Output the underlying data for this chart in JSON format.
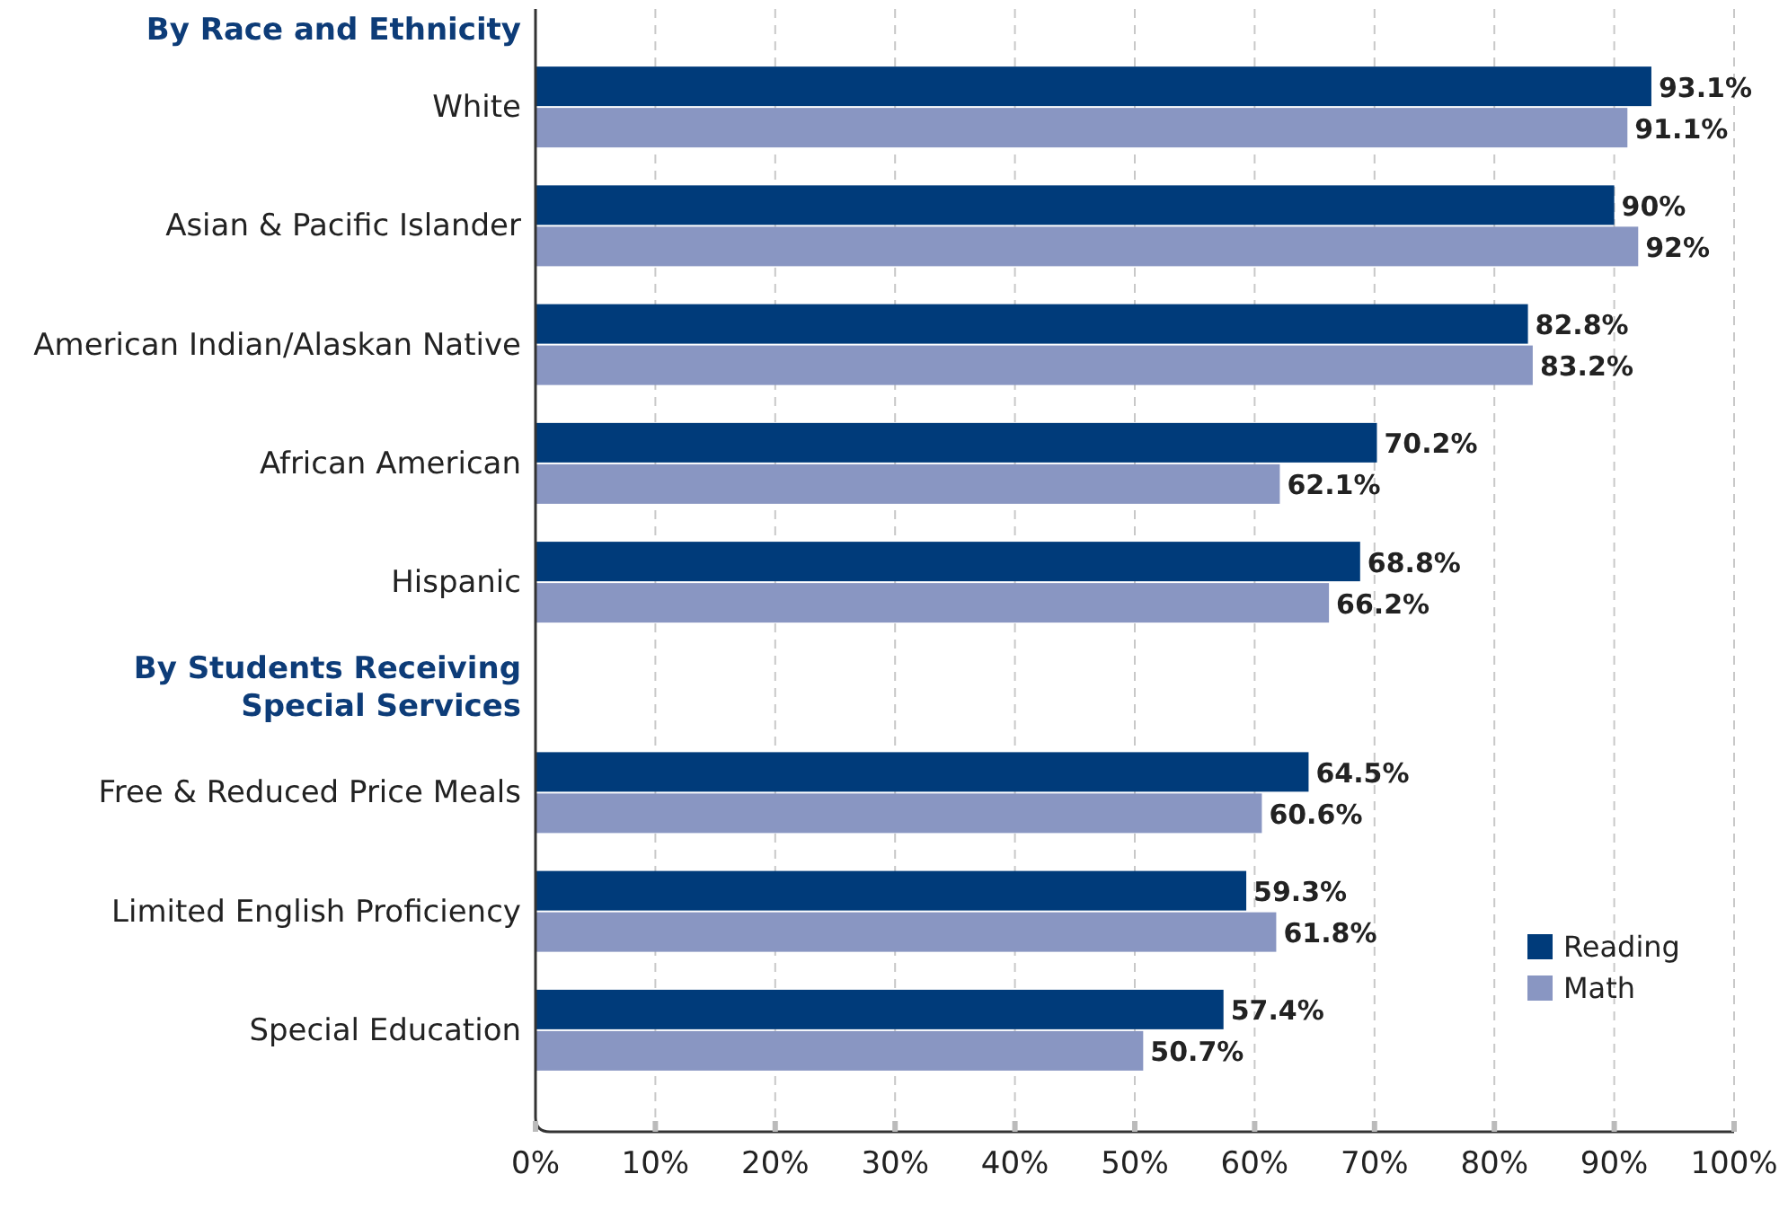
{
  "chart_data": {
    "type": "bar",
    "orientation": "horizontal",
    "categories": [
      "White",
      "Asian & Pacific Islander",
      "American Indian/Alaskan Native",
      "African American",
      "Hispanic",
      null,
      "Free & Reduced Price Meals",
      "Limited English Proficiency",
      "Special Education"
    ],
    "series": [
      {
        "name": "Reading",
        "color": "#003b7a",
        "values": [
          93.1,
          90,
          82.8,
          70.2,
          68.8,
          null,
          64.5,
          59.3,
          57.4
        ],
        "value_labels": [
          "93.1%",
          "90%",
          "82.8%",
          "70.2%",
          "68.8%",
          null,
          "64.5%",
          "59.3%",
          "57.4%"
        ]
      },
      {
        "name": "Math",
        "color": "#8996c2",
        "values": [
          91.1,
          92,
          83.2,
          62.1,
          66.2,
          null,
          60.6,
          61.8,
          50.7
        ],
        "value_labels": [
          "91.1%",
          "92%",
          "83.2%",
          "62.1%",
          "66.2%",
          null,
          "60.6%",
          "61.8%",
          "50.7%"
        ]
      }
    ],
    "xlim": [
      0,
      100
    ],
    "xticks": [
      {
        "value": 0,
        "label": "0%"
      },
      {
        "value": 10,
        "label": "10%"
      },
      {
        "value": 20,
        "label": "20%"
      },
      {
        "value": 30,
        "label": "30%"
      },
      {
        "value": 40,
        "label": "40%"
      },
      {
        "value": 50,
        "label": "50%"
      },
      {
        "value": 60,
        "label": "60%"
      },
      {
        "value": 70,
        "label": "70%"
      },
      {
        "value": 80,
        "label": "80%"
      },
      {
        "value": 90,
        "label": "90%"
      },
      {
        "value": 100,
        "label": "100%"
      }
    ],
    "annotations": [
      "By Race and Ethnicity",
      "By Students Receiving\nSpecial Services"
    ],
    "grid": "x",
    "legend": "bottom right"
  }
}
